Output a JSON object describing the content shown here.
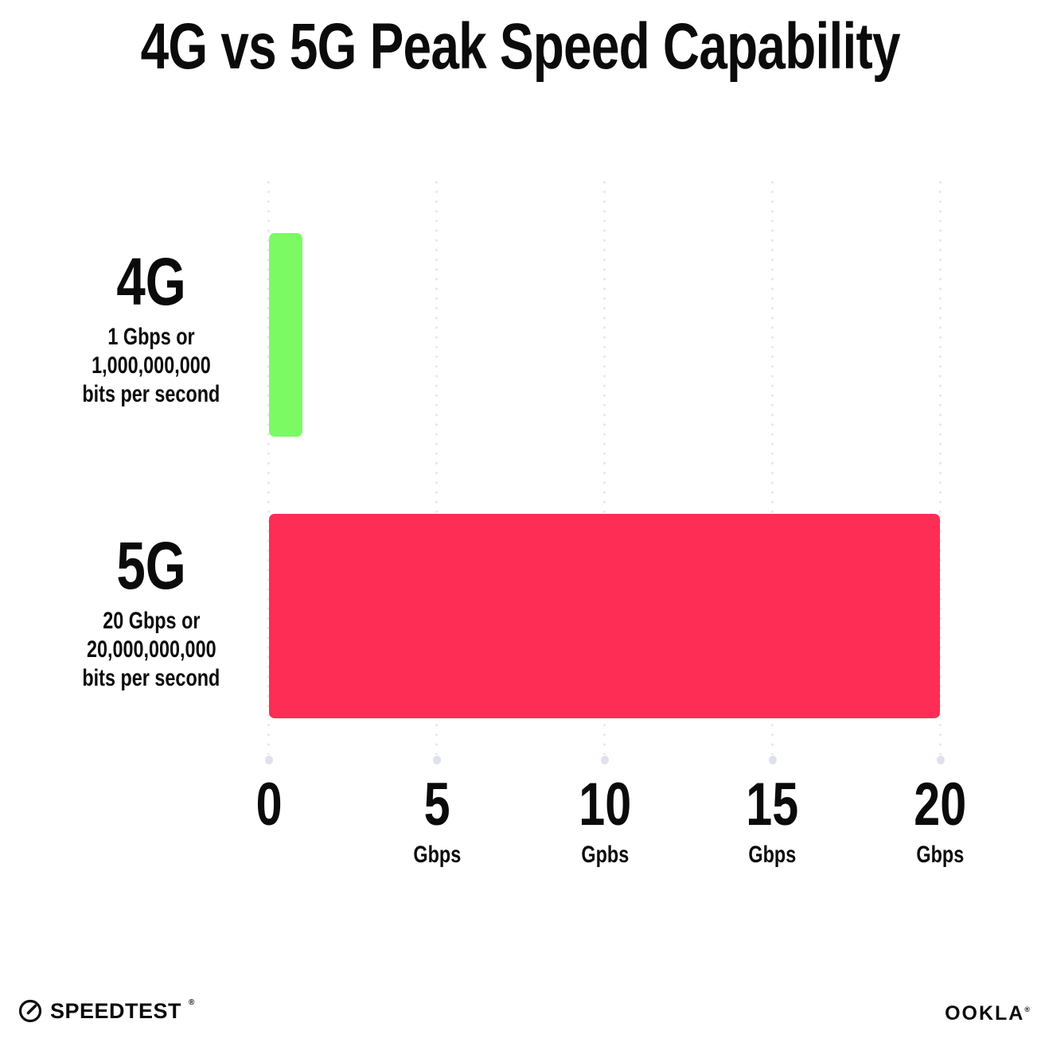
{
  "title": "4G vs 5G Peak Speed Capability",
  "chart_data": {
    "type": "bar",
    "orientation": "horizontal",
    "title": "4G vs 5G Peak Speed Capability",
    "categories": [
      "4G",
      "5G"
    ],
    "values": [
      1,
      20
    ],
    "value_unit": "Gbps",
    "xlim": [
      0,
      20
    ],
    "grid": "dotted vertical gridlines at 0, 5, 10, 15, 20 Gbps",
    "legend": "none",
    "series_labels": [
      {
        "name": "4G",
        "desc_lines": [
          "1 Gbps or",
          "1,000,000,000",
          "bits per second"
        ]
      },
      {
        "name": "5G",
        "desc_lines": [
          "20 Gbps or",
          "20,000,000,000",
          "bits per second"
        ]
      }
    ],
    "x_ticks": [
      {
        "value": "0",
        "unit": ""
      },
      {
        "value": "5",
        "unit": "Gbps"
      },
      {
        "value": "10",
        "unit": "Gpbs"
      },
      {
        "value": "15",
        "unit": "Gbps"
      },
      {
        "value": "20",
        "unit": "Gbps"
      }
    ]
  },
  "colors": {
    "bar_4g": "#7CFA64",
    "bar_5g": "#FD2D55",
    "grid_dot": "#E4E6F0",
    "grid_end_dot": "#DFE2ED",
    "text": "#0B0B0B",
    "background": "#FFFFFF"
  },
  "footer": {
    "speedtest_label": "SPEEDTEST",
    "speedtest_trademark": "®",
    "ookla_label": "OOKLA",
    "ookla_trademark": "®"
  }
}
